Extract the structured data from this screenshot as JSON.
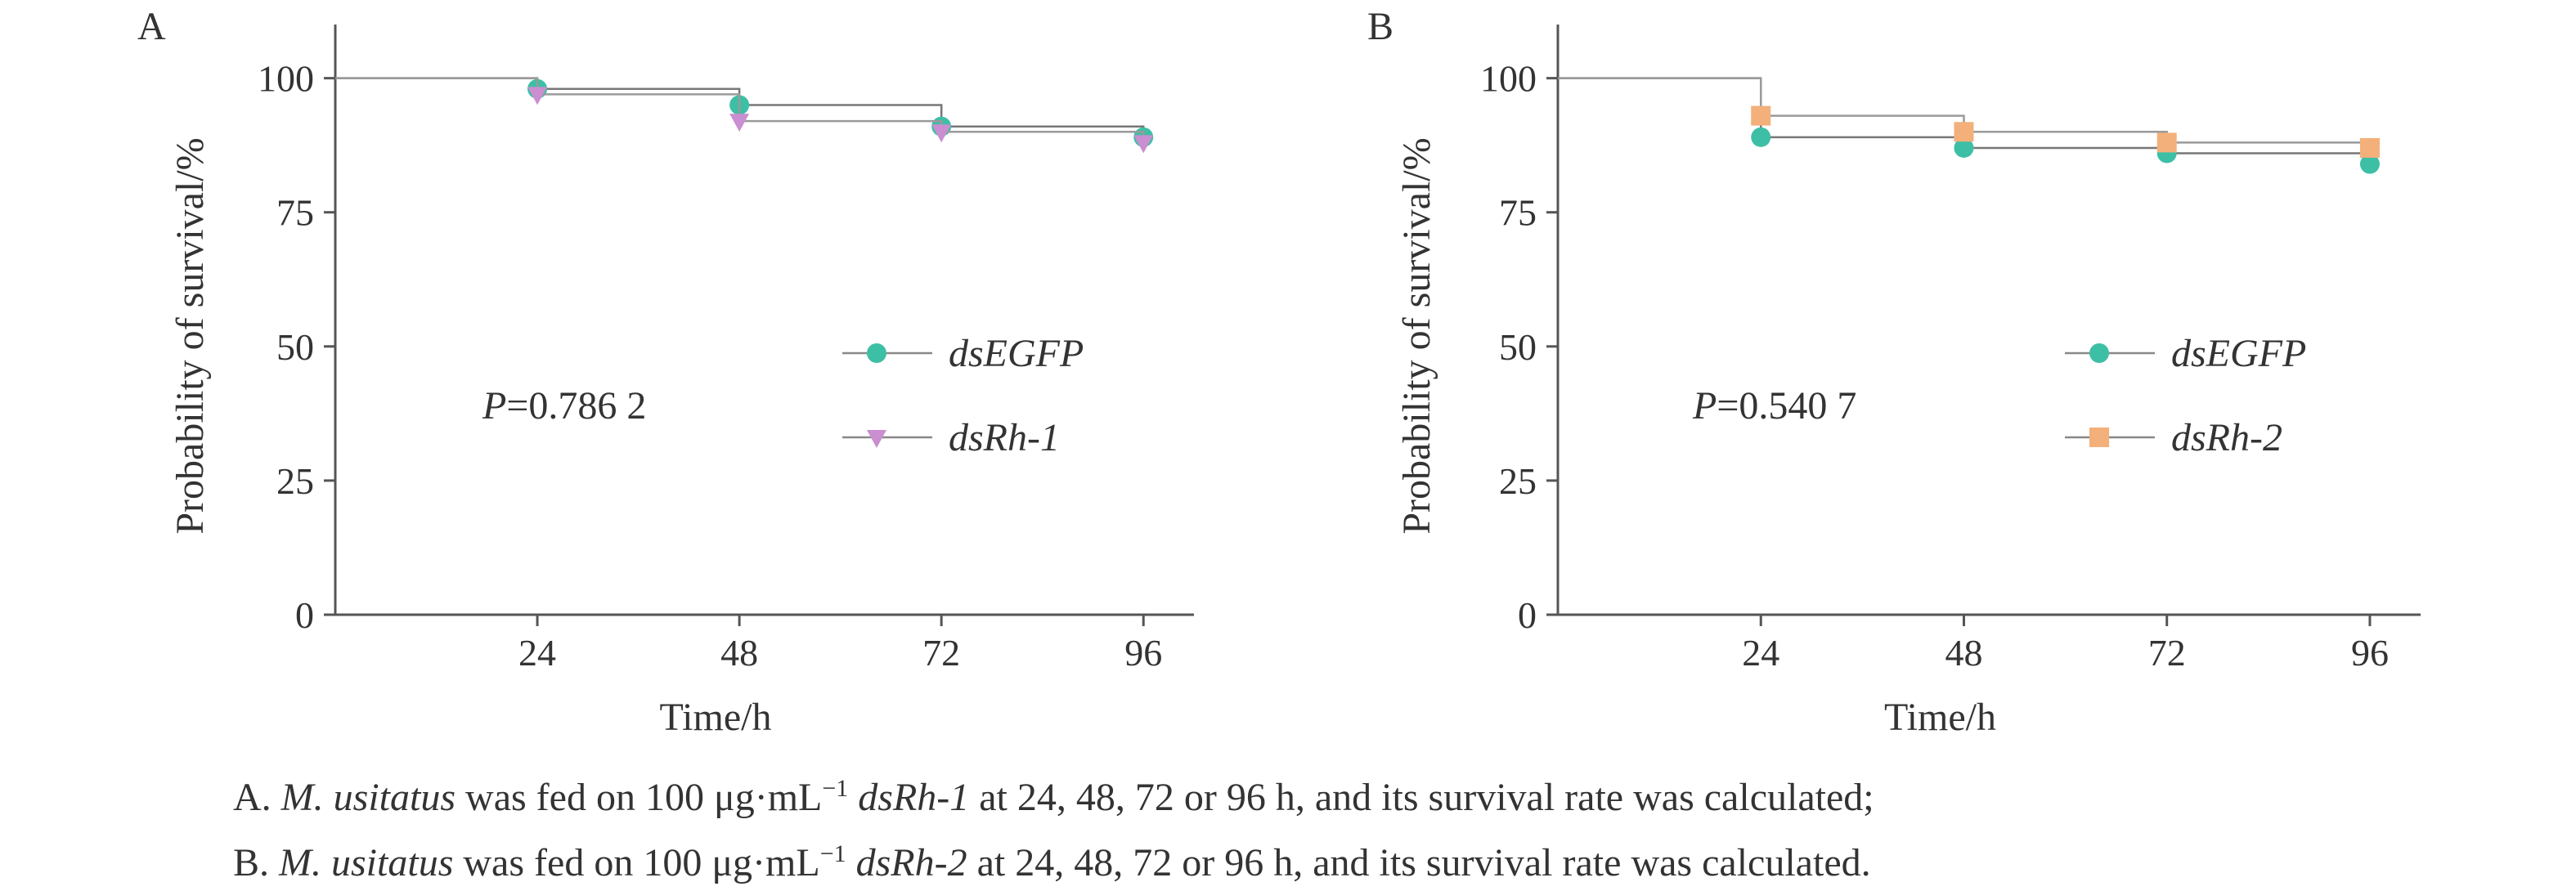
{
  "chart_data": [
    {
      "panel_label": "A",
      "type": "line",
      "step": true,
      "ylabel": "Probability of survival/%",
      "xlabel": "Time/h",
      "x_ticks": [
        "24",
        "48",
        "72",
        "96"
      ],
      "y_ticks": [
        "0",
        "25",
        "50",
        "75",
        "100"
      ],
      "xlim": [
        0,
        102
      ],
      "ylim": [
        0,
        110
      ],
      "grid": false,
      "legend_position": "center-right",
      "annotation": {
        "italic": "P",
        "text": "=0.786 2"
      },
      "series": [
        {
          "name": "dsEGFP",
          "marker": "circle",
          "color": "#3dbfa6",
          "x": [
            0,
            24,
            48,
            72,
            96
          ],
          "y": [
            100,
            98,
            95,
            91,
            89
          ]
        },
        {
          "name": "dsRh-1",
          "marker": "triangle-down",
          "color": "#c98fd0",
          "x": [
            0,
            24,
            48,
            72,
            96
          ],
          "y": [
            100,
            97,
            92,
            90,
            88
          ]
        }
      ]
    },
    {
      "panel_label": "B",
      "type": "line",
      "step": true,
      "ylabel": "Probability of survival/%",
      "xlabel": "Time/h",
      "x_ticks": [
        "24",
        "48",
        "72",
        "96"
      ],
      "y_ticks": [
        "0",
        "25",
        "50",
        "75",
        "100"
      ],
      "xlim": [
        0,
        102
      ],
      "ylim": [
        0,
        110
      ],
      "grid": false,
      "legend_position": "center-right",
      "annotation": {
        "italic": "P",
        "text": "=0.540 7"
      },
      "series": [
        {
          "name": "dsEGFP",
          "marker": "circle",
          "color": "#3dbfa6",
          "x": [
            0,
            24,
            48,
            72,
            96
          ],
          "y": [
            100,
            89,
            87,
            86,
            84
          ]
        },
        {
          "name": "dsRh-2",
          "marker": "square",
          "color": "#f3b07a",
          "x": [
            0,
            24,
            48,
            72,
            96
          ],
          "y": [
            100,
            93,
            90,
            88,
            87
          ]
        }
      ]
    }
  ],
  "caption": {
    "line_a": {
      "prefix": "A. ",
      "species": "M. usitatus",
      "middle": " was fed on 100 μg·mL",
      "superscript": "−1",
      "gene": "dsRh-1",
      "suffix": " at 24, 48, 72 or 96 h, and its survival rate was calculated;"
    },
    "line_b": {
      "prefix": "B. ",
      "species": "M. usitatus",
      "middle": " was fed on 100 μg·mL",
      "superscript": "−1",
      "gene": "dsRh-2",
      "suffix": " at 24, 48, 72 or 96 h, and its survival rate was calculated."
    }
  }
}
